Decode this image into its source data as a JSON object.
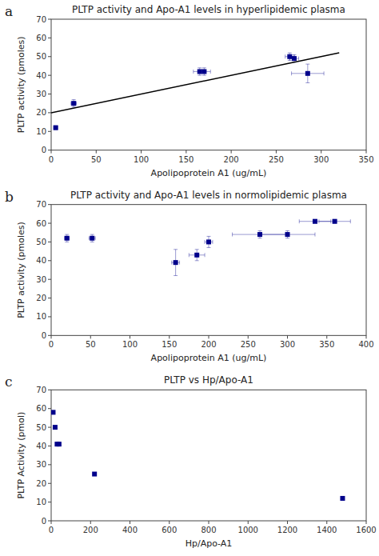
{
  "chart_data": [
    {
      "type": "scatter",
      "title": "PLTP activity and Apo-A1 levels in hyperlipidemic plasma",
      "annotation": "a",
      "xlabel": "Apolipoprotein A1 (ug/mL)",
      "ylabel": "PLTP activity (pmoles)",
      "xlim": [
        0,
        350
      ],
      "ylim": [
        0,
        70
      ],
      "xticks": [
        0,
        50,
        100,
        150,
        200,
        250,
        300,
        350
      ],
      "yticks": [
        0,
        10,
        20,
        30,
        40,
        50,
        60,
        70
      ],
      "series": [
        {
          "type": "scatter",
          "marker": "square",
          "color": "#00008B",
          "x": [
            5,
            25,
            165,
            170,
            265,
            270,
            285
          ],
          "values": [
            12,
            25,
            42,
            42,
            50,
            49,
            41
          ],
          "xerr": [
            2,
            3,
            7,
            7,
            5,
            5,
            18
          ],
          "yerr": [
            1,
            2,
            2,
            2,
            2,
            2,
            5
          ]
        },
        {
          "type": "line",
          "color": "#000000",
          "x": [
            0,
            320
          ],
          "values": [
            20,
            52
          ]
        }
      ]
    },
    {
      "type": "scatter",
      "title": "PLTP activity and Apo-A1 levels in normolipidemic plasma",
      "annotation": "b",
      "xlabel": "Apolipoprotein A1 (ug/mL)",
      "ylabel": "PLTP activity (pmoles)",
      "xlim": [
        0,
        400
      ],
      "ylim": [
        0,
        70
      ],
      "xticks": [
        0,
        50,
        100,
        150,
        200,
        250,
        300,
        350,
        400
      ],
      "yticks": [
        0,
        10,
        20,
        30,
        40,
        50,
        60,
        70
      ],
      "series": [
        {
          "type": "scatter",
          "marker": "square",
          "color": "#00008B",
          "x": [
            20,
            52,
            158,
            185,
            200,
            265,
            300,
            335,
            360
          ],
          "values": [
            52,
            52,
            39,
            43,
            50,
            54,
            54,
            61,
            61
          ],
          "xerr": [
            3,
            4,
            5,
            10,
            5,
            35,
            35,
            20,
            20
          ],
          "yerr": [
            2,
            2,
            7,
            3,
            3,
            2,
            2,
            1,
            1
          ]
        }
      ]
    },
    {
      "type": "scatter",
      "title": "PLTP vs Hp/Apo-A1",
      "annotation": "c",
      "xlabel": "Hp/Apo-A1",
      "ylabel": "PLTP Activity (pmol)",
      "xlim": [
        0,
        1600
      ],
      "ylim": [
        0,
        70
      ],
      "xticks": [
        0,
        200,
        400,
        600,
        800,
        1000,
        1200,
        1400,
        1600
      ],
      "yticks": [
        0,
        10,
        20,
        30,
        40,
        50,
        60,
        70
      ],
      "series": [
        {
          "type": "scatter",
          "marker": "square",
          "color": "#00008B",
          "x": [
            10,
            20,
            30,
            40,
            220,
            1480
          ],
          "values": [
            58,
            50,
            41,
            41,
            25,
            12
          ]
        }
      ]
    }
  ]
}
